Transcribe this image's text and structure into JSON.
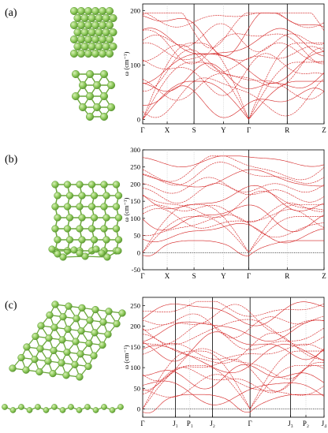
{
  "panels": [
    {
      "label": "(a)",
      "ylabel": "ω (cm⁻¹)",
      "yticks": [
        "0",
        "100",
        "200"
      ],
      "ylim": [
        -8,
        212
      ],
      "kpoints": [
        "Γ",
        "X",
        "S",
        "Y",
        "Γ",
        "R",
        "Z"
      ],
      "kpos": [
        0,
        0.135,
        0.283,
        0.445,
        0.585,
        0.797,
        1.0
      ],
      "solid_lines": [
        2,
        4,
        5
      ],
      "zero_line": false
    },
    {
      "label": "(b)",
      "ylabel": "ω (cm⁻¹)",
      "yticks": [
        "-50",
        "0",
        "50",
        "100",
        "150",
        "200",
        "250",
        "300"
      ],
      "ylim": [
        -50,
        300
      ],
      "kpoints": [
        "Γ",
        "X",
        "S",
        "Y",
        "Γ",
        "R",
        "Z"
      ],
      "kpos": [
        0,
        0.135,
        0.283,
        0.445,
        0.585,
        0.797,
        1.0
      ],
      "solid_lines": [
        4
      ],
      "zero_line": true
    },
    {
      "label": "(c)",
      "ylabel": "ω (cm⁻¹)",
      "yticks": [
        "0",
        "50",
        "100",
        "150",
        "200",
        "250"
      ],
      "ylim": [
        -20,
        270
      ],
      "kpoints": [
        "Γ",
        "J₁",
        "P₁",
        "J₂",
        "Γ",
        "J₃",
        "P₂",
        "J₄"
      ],
      "kpos": [
        0,
        0.18,
        0.26,
        0.385,
        0.592,
        0.815,
        0.9,
        1.0
      ],
      "solid_lines": [
        1,
        3,
        4,
        5
      ],
      "zero_line": true
    }
  ],
  "colors": {
    "band": "#d42020",
    "axis": "#000000",
    "atom": "#8fca5c",
    "bond": "#6aa63a"
  }
}
